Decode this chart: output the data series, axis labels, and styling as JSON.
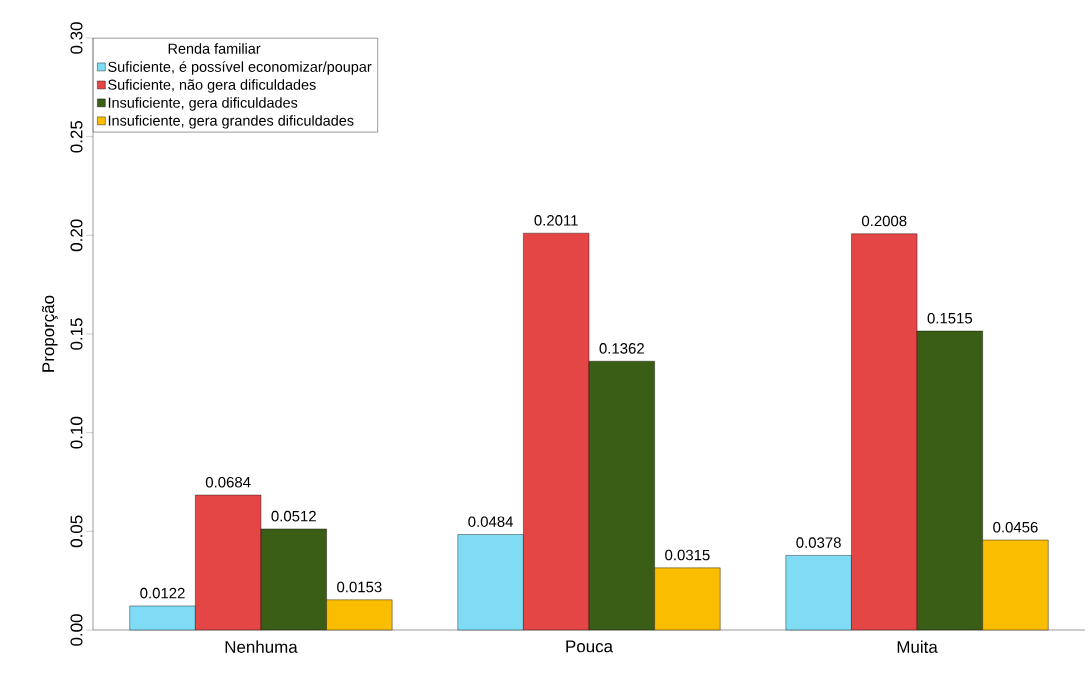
{
  "chart_data": {
    "type": "bar",
    "ylabel": "Proporção",
    "legend_title": "Renda familiar",
    "categories": [
      "Nenhuma",
      "Pouca",
      "Muita"
    ],
    "series": [
      {
        "name": "Suficiente, é possível economizar/poupar",
        "color": "#80dcf5",
        "values": [
          0.0122,
          0.0484,
          0.0378
        ]
      },
      {
        "name": "Suficiente, não gera dificuldades",
        "color": "#e44646",
        "values": [
          0.0684,
          0.2011,
          0.2008
        ]
      },
      {
        "name": "Insuficiente, gera dificuldades",
        "color": "#3b5e17",
        "values": [
          0.0512,
          0.1362,
          0.1515
        ]
      },
      {
        "name": "Insuficiente, gera grandes dificuldades",
        "color": "#fbbd00",
        "values": [
          0.0153,
          0.0315,
          0.0456
        ]
      }
    ],
    "ylim": [
      0,
      0.3
    ],
    "yticks": [
      {
        "value": 0,
        "label": "0.00"
      },
      {
        "value": 0.05,
        "label": "0.05"
      },
      {
        "value": 0.1,
        "label": "0.10"
      },
      {
        "value": 0.15,
        "label": "0.15"
      },
      {
        "value": 0.2,
        "label": "0.20"
      },
      {
        "value": 0.25,
        "label": "0.25"
      },
      {
        "value": 0.3,
        "label": "0.30"
      }
    ],
    "data_labels": true,
    "legend": "top left",
    "grid": false
  }
}
